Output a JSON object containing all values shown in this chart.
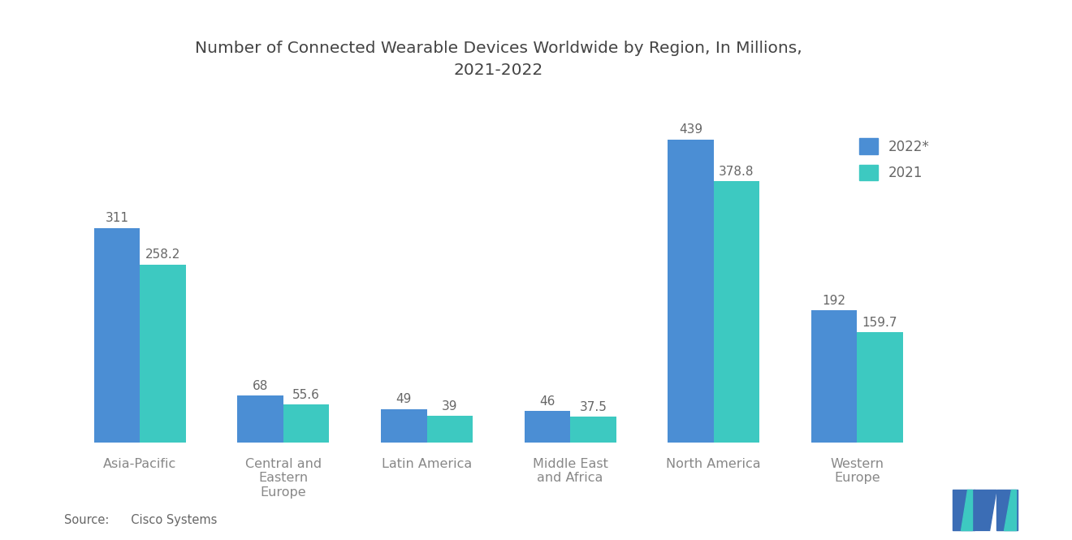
{
  "title": "Number of Connected Wearable Devices Worldwide by Region, In Millions,\n2021-2022",
  "categories": [
    "Asia-Pacific",
    "Central and\nEastern\nEurope",
    "Latin America",
    "Middle East\nand Africa",
    "North America",
    "Western\nEurope"
  ],
  "values_2022": [
    311,
    68,
    49,
    46,
    439,
    192
  ],
  "values_2021": [
    258.2,
    55.6,
    39,
    37.5,
    378.8,
    159.7
  ],
  "labels_2022": [
    "311",
    "68",
    "49",
    "46",
    "439",
    "192"
  ],
  "labels_2021": [
    "258.2",
    "55.6",
    "39",
    "37.5",
    "378.8",
    "159.7"
  ],
  "color_2022": "#4B8ED4",
  "color_2021": "#3DC9C1",
  "legend_2022": "2022*",
  "legend_2021": "2021",
  "source_label": "Source:",
  "source_text": "  Cisco Systems",
  "background_color": "#FFFFFF",
  "bar_width": 0.32,
  "ylim": [
    0,
    500
  ],
  "label_color": "#666666",
  "tick_color": "#888888",
  "title_color": "#444444"
}
